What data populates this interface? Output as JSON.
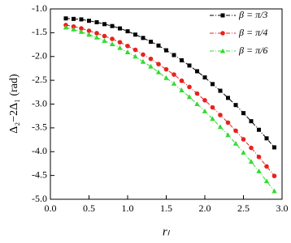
{
  "chart_data": {
    "type": "line",
    "x_label": "rₗ",
    "y_label": "Δ₂−2Δ₁ (rad)",
    "x": [
      0.2,
      0.3,
      0.4,
      0.5,
      0.6,
      0.7,
      0.8,
      0.9,
      1.0,
      1.1,
      1.2,
      1.3,
      1.4,
      1.5,
      1.6,
      1.7,
      1.8,
      1.9,
      2.0,
      2.1,
      2.2,
      2.3,
      2.4,
      2.5,
      2.6,
      2.7,
      2.8,
      2.9
    ],
    "series": [
      {
        "name": "β = π/3",
        "color": "#000000",
        "marker": "square",
        "values": [
          -1.2,
          -1.21,
          -1.22,
          -1.25,
          -1.28,
          -1.32,
          -1.36,
          -1.41,
          -1.47,
          -1.54,
          -1.61,
          -1.69,
          -1.77,
          -1.87,
          -1.97,
          -2.08,
          -2.19,
          -2.31,
          -2.44,
          -2.58,
          -2.72,
          -2.87,
          -3.02,
          -3.19,
          -3.36,
          -3.54,
          -3.72,
          -3.91
        ]
      },
      {
        "name": "β = π/4",
        "color": "#e8221e",
        "marker": "circle",
        "values": [
          -1.34,
          -1.37,
          -1.41,
          -1.46,
          -1.51,
          -1.57,
          -1.63,
          -1.7,
          -1.78,
          -1.86,
          -1.96,
          -2.05,
          -2.16,
          -2.27,
          -2.38,
          -2.51,
          -2.64,
          -2.78,
          -2.92,
          -3.07,
          -3.23,
          -3.39,
          -3.56,
          -3.74,
          -3.92,
          -4.11,
          -4.31,
          -4.51
        ]
      },
      {
        "name": "β = π/6",
        "color": "#2fdc2f",
        "marker": "triangle",
        "values": [
          -1.39,
          -1.43,
          -1.48,
          -1.54,
          -1.6,
          -1.67,
          -1.74,
          -1.82,
          -1.91,
          -2.0,
          -2.11,
          -2.21,
          -2.33,
          -2.45,
          -2.57,
          -2.71,
          -2.85,
          -3.0,
          -3.15,
          -3.31,
          -3.48,
          -3.65,
          -3.83,
          -4.02,
          -4.21,
          -4.41,
          -4.62,
          -4.83
        ]
      }
    ],
    "xlim": [
      0,
      3
    ],
    "ylim": [
      -5,
      -1
    ],
    "xticks": [
      {
        "value": 0,
        "label": "0.0"
      },
      0.5,
      {
        "value": 1,
        "label": "1.0"
      },
      1.5,
      {
        "value": 2,
        "label": "2.0"
      },
      2.5,
      {
        "value": 3,
        "label": "3.0"
      }
    ],
    "yticks": [
      {
        "value": -1,
        "label": "-1.0"
      },
      -1.5,
      {
        "value": -2,
        "label": "-2.0"
      },
      -2.5,
      {
        "value": -3,
        "label": "-3.0"
      },
      -3.5,
      {
        "value": -4,
        "label": "-4.0"
      },
      -4.5,
      {
        "value": -5,
        "label": "-5.0"
      }
    ],
    "legend": "upper-right",
    "grid": false
  }
}
